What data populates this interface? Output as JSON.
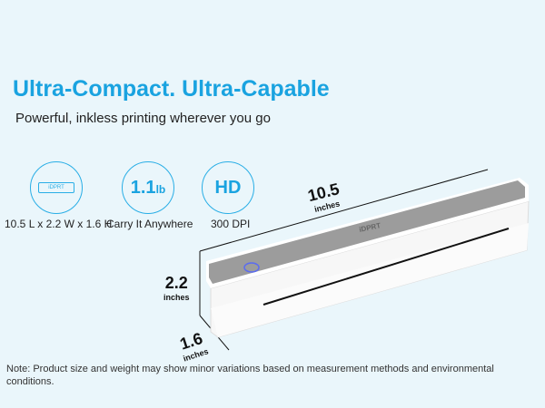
{
  "headline": "Ultra-Compact. Ultra-Capable",
  "subheadline": "Powerful, inkless printing wherever you go",
  "features": [
    {
      "icon": "printer-outline-icon",
      "icon_text": "iDPRT",
      "label": "10.5 L x 2.2 W x 1.6 H"
    },
    {
      "icon_value": "1.1",
      "icon_unit": "lb",
      "label": "Carry It Anywhere"
    },
    {
      "icon_value": "HD",
      "label": "300 DPI"
    }
  ],
  "dimensions": {
    "length": {
      "value": "10.5",
      "unit": "inches"
    },
    "height": {
      "value": "2.2",
      "unit": "inches"
    },
    "depth": {
      "value": "1.6",
      "unit": "inches"
    }
  },
  "product": {
    "brand": "iDPRT",
    "power_button_color": "#5b6cf0"
  },
  "note": "Note: Product size and weight may show minor variations based on measurement methods and environmental conditions.",
  "colors": {
    "accent": "#1aa3e0",
    "background": "#eaf6fb"
  }
}
